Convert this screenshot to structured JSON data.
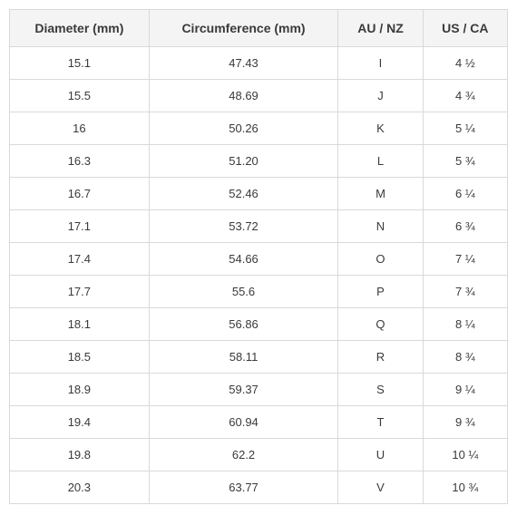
{
  "table": {
    "type": "table",
    "background_color": "#ffffff",
    "header_background": "#f4f4f4",
    "border_color": "#d9d9d9",
    "text_color": "#3a3a3a",
    "header_fontsize": 14,
    "cell_fontsize": 13,
    "columns": [
      {
        "label": "Diameter (mm)",
        "width": 0.28,
        "align": "center"
      },
      {
        "label": "Circumference (mm)",
        "width": 0.38,
        "align": "center"
      },
      {
        "label": "AU / NZ",
        "width": 0.17,
        "align": "center"
      },
      {
        "label": "US / CA",
        "width": 0.17,
        "align": "center"
      }
    ],
    "rows": [
      [
        "15.1",
        "47.43",
        "I",
        "4 ½"
      ],
      [
        "15.5",
        "48.69",
        "J",
        "4 ¾"
      ],
      [
        "16",
        "50.26",
        "K",
        "5 ¼"
      ],
      [
        "16.3",
        "51.20",
        "L",
        "5 ¾"
      ],
      [
        "16.7",
        "52.46",
        "M",
        "6 ¼"
      ],
      [
        "17.1",
        "53.72",
        "N",
        "6 ¾"
      ],
      [
        "17.4",
        "54.66",
        "O",
        "7 ¼"
      ],
      [
        "17.7",
        "55.6",
        "P",
        "7 ¾"
      ],
      [
        "18.1",
        "56.86",
        "Q",
        "8 ¼"
      ],
      [
        "18.5",
        "58.11",
        "R",
        "8 ¾"
      ],
      [
        "18.9",
        "59.37",
        "S",
        "9 ¼"
      ],
      [
        "19.4",
        "60.94",
        "T",
        "9 ¾"
      ],
      [
        "19.8",
        "62.2",
        "U",
        "10 ¼"
      ],
      [
        "20.3",
        "63.77",
        "V",
        "10 ¾"
      ]
    ]
  }
}
